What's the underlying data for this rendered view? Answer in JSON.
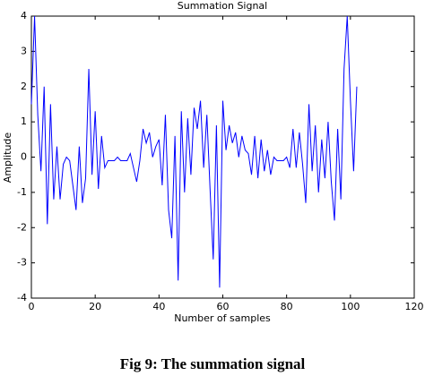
{
  "chart_data": {
    "type": "line",
    "title": "Summation Signal",
    "x_label": "Number of samples",
    "y_label": "Amplitude",
    "caption": "Fig 9: The summation signal",
    "color": "#0000ff",
    "x": [
      0,
      1,
      2,
      3,
      4,
      5,
      6,
      7,
      8,
      9,
      10,
      11,
      12,
      13,
      14,
      15,
      16,
      17,
      18,
      19,
      20,
      21,
      22,
      23,
      24,
      25,
      26,
      27,
      28,
      29,
      30,
      31,
      32,
      33,
      34,
      35,
      36,
      37,
      38,
      39,
      40,
      41,
      42,
      43,
      44,
      45,
      46,
      47,
      48,
      49,
      50,
      51,
      52,
      53,
      54,
      55,
      56,
      57,
      58,
      59,
      60,
      61,
      62,
      63,
      64,
      65,
      66,
      67,
      68,
      69,
      70,
      71,
      72,
      73,
      74,
      75,
      76,
      77,
      78,
      79,
      80,
      81,
      82,
      83,
      84,
      85,
      86,
      87,
      88,
      89,
      90,
      91,
      92,
      93,
      94,
      95,
      96,
      97,
      98,
      99,
      100,
      101,
      102
    ],
    "values": [
      1.5,
      4,
      1.2,
      -0.4,
      2,
      -1.9,
      1.5,
      -1.2,
      0.3,
      -1.2,
      -0.2,
      0,
      -0.1,
      -0.8,
      -1.5,
      0.3,
      -1.3,
      -0.6,
      2.5,
      -0.5,
      1.3,
      -0.9,
      0.6,
      -0.3,
      -0.1,
      -0.1,
      -0.1,
      0,
      -0.1,
      -0.1,
      -0.1,
      0.1,
      -0.3,
      -0.7,
      -0.1,
      0.8,
      0.4,
      0.7,
      0,
      0.3,
      0.5,
      -0.8,
      1.2,
      -1.5,
      -2.3,
      0.6,
      -3.5,
      1.3,
      -1,
      1.1,
      -0.5,
      1.4,
      0.8,
      1.6,
      -0.3,
      1.2,
      -0.9,
      -2.9,
      0.9,
      -3.7,
      1.6,
      0.2,
      0.9,
      0.4,
      0.7,
      0,
      0.6,
      0.2,
      0.1,
      -0.5,
      0.6,
      -0.6,
      0.5,
      -0.4,
      0.2,
      -0.5,
      0,
      -0.1,
      -0.1,
      -0.1,
      0,
      -0.3,
      0.8,
      -0.3,
      0.7,
      -0.2,
      -1.3,
      1.5,
      -0.4,
      0.9,
      -1,
      0.5,
      -0.6,
      1,
      -0.7,
      -1.8,
      0.8,
      -1.2,
      2.5,
      4,
      1.6,
      -0.4,
      2
    ],
    "xlim": [
      0,
      120
    ],
    "xticks": [
      0,
      20,
      40,
      60,
      80,
      100,
      120
    ],
    "ylim": [
      -4,
      4
    ],
    "yticks": [
      -4,
      -3,
      -2,
      -1,
      0,
      1,
      2,
      3,
      4
    ]
  }
}
